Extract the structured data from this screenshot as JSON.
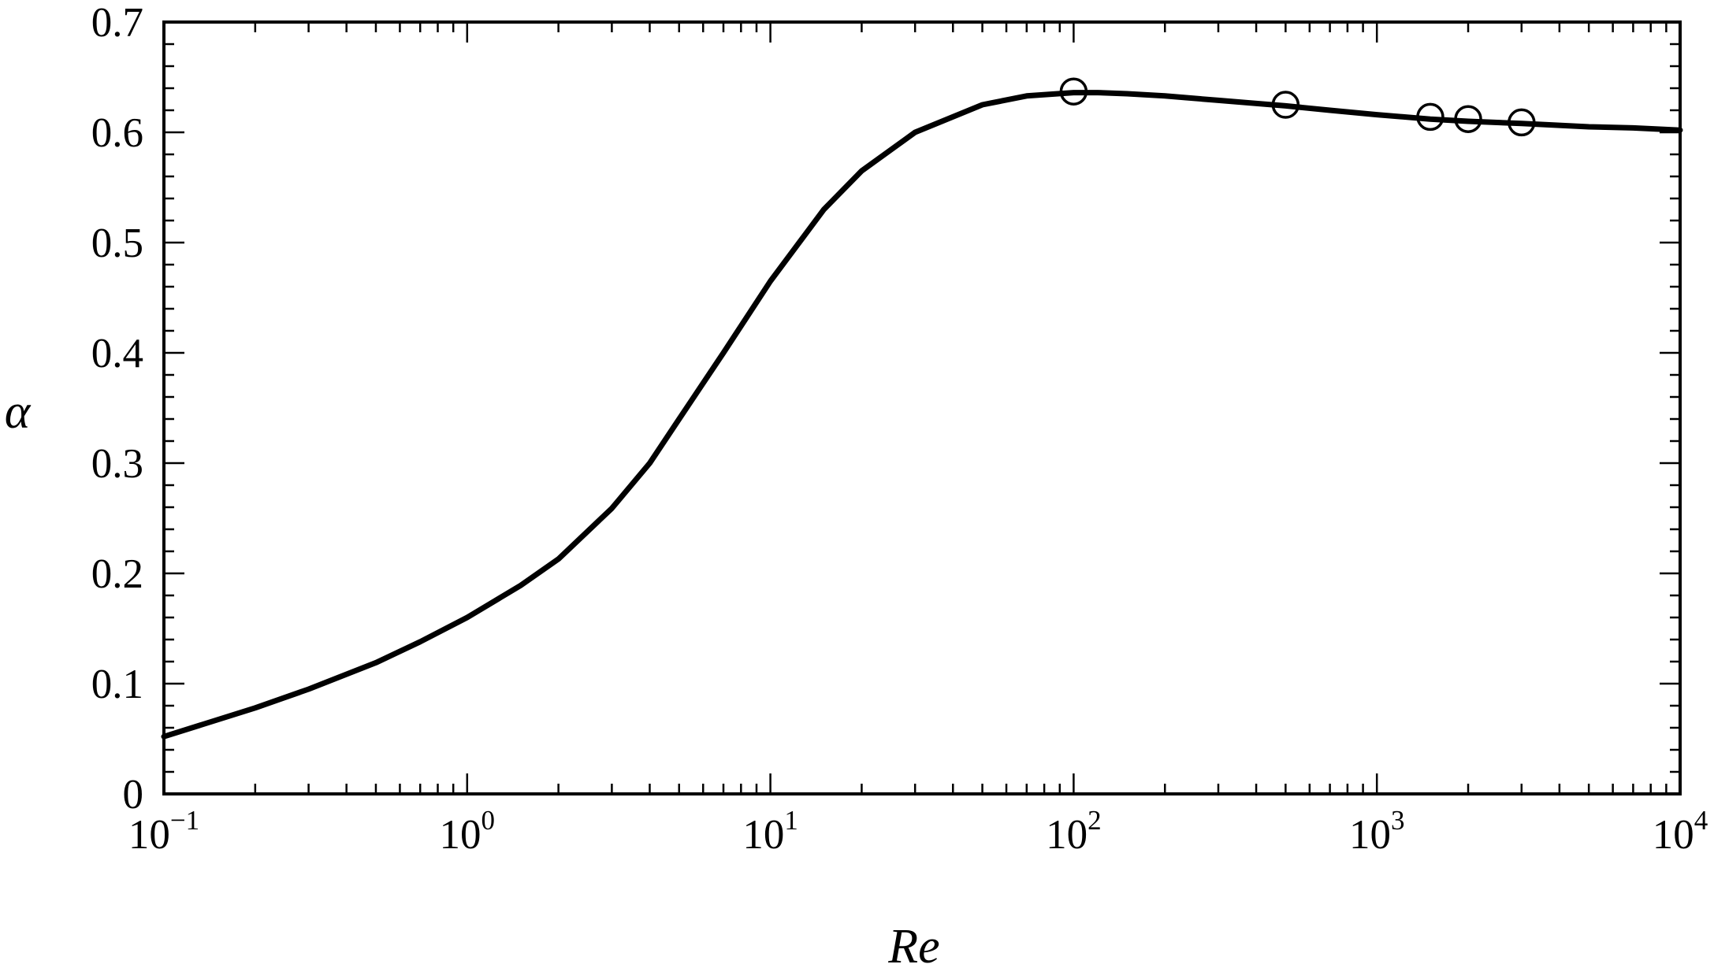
{
  "chart_data": {
    "type": "line",
    "title": "",
    "xlabel": "Re",
    "ylabel": "α",
    "xscale": "log",
    "xlim": [
      0.1,
      10000
    ],
    "ylim": [
      0,
      0.7
    ],
    "grid": false,
    "legend": "none",
    "xticks": [
      {
        "base": "10",
        "exp": "−1"
      },
      {
        "base": "10",
        "exp": "0"
      },
      {
        "base": "10",
        "exp": "1"
      },
      {
        "base": "10",
        "exp": "2"
      },
      {
        "base": "10",
        "exp": "3"
      },
      {
        "base": "10",
        "exp": "4"
      }
    ],
    "yticks": [
      "0",
      "0.1",
      "0.2",
      "0.3",
      "0.4",
      "0.5",
      "0.6",
      "0.7"
    ],
    "series": [
      {
        "style": "solid-line",
        "color": "#000000",
        "x": [
          0.1,
          0.2,
          0.3,
          0.5,
          0.7,
          1,
          1.5,
          2,
          3,
          4,
          5,
          7,
          10,
          15,
          20,
          30,
          50,
          70,
          100,
          120,
          150,
          200,
          300,
          500,
          700,
          1000,
          1500,
          2000,
          3000,
          5000,
          7000,
          10000
        ],
        "y": [
          0.052,
          0.078,
          0.095,
          0.119,
          0.138,
          0.16,
          0.189,
          0.213,
          0.259,
          0.3,
          0.34,
          0.4,
          0.465,
          0.53,
          0.565,
          0.6,
          0.625,
          0.633,
          0.636,
          0.636,
          0.635,
          0.633,
          0.629,
          0.624,
          0.62,
          0.616,
          0.612,
          0.61,
          0.608,
          0.605,
          0.604,
          0.602
        ]
      },
      {
        "style": "open-circle-markers",
        "color": "#000000",
        "x": [
          100,
          500,
          1500,
          2000,
          3000
        ],
        "y": [
          0.637,
          0.625,
          0.614,
          0.612,
          0.609
        ]
      }
    ]
  }
}
